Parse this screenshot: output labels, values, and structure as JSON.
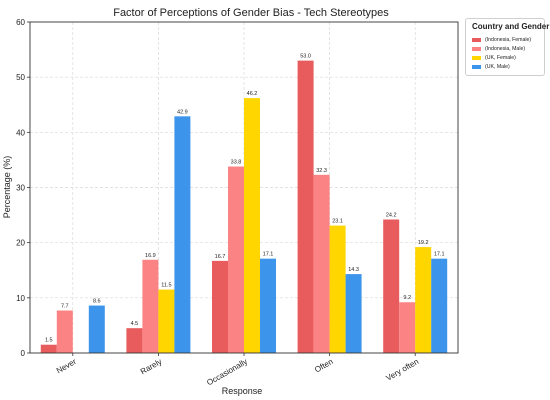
{
  "chart_data": {
    "type": "bar",
    "title": "Factor of Perceptions of Gender Bias - Tech Stereotypes",
    "xlabel": "Response",
    "ylabel": "Percentage (%)",
    "ylim": [
      0,
      60
    ],
    "yticks": [
      "0",
      "10",
      "20",
      "30",
      "40",
      "50",
      "60"
    ],
    "grid": true,
    "legend_title": "Country and Gender",
    "legend_position": "outside-top-right",
    "categories": [
      "Never",
      "Rarely",
      "Occasionally",
      "Often",
      "Very often"
    ],
    "series": [
      {
        "name": "(Indonesia, Female)",
        "color": "#e85c5e",
        "values": [
          1.5,
          4.5,
          16.7,
          53.0,
          24.2
        ],
        "labels": [
          "1.5",
          "4.5",
          "16.7",
          "53.0",
          "24.2"
        ]
      },
      {
        "name": "(Indonesia, Male)",
        "color": "#fb8383",
        "values": [
          7.7,
          16.9,
          33.8,
          32.3,
          9.2
        ],
        "labels": [
          "7.7",
          "16.9",
          "33.8",
          "32.3",
          "9.2"
        ]
      },
      {
        "name": "(UK, Female)",
        "color": "#ffd600",
        "values": [
          null,
          11.5,
          46.2,
          23.1,
          19.2
        ],
        "labels": [
          "",
          "11.5",
          "46.2",
          "23.1",
          "19.2"
        ]
      },
      {
        "name": "(UK, Male)",
        "color": "#3d95eb",
        "values": [
          8.6,
          42.9,
          17.1,
          14.3,
          17.1
        ],
        "labels": [
          "8.6",
          "42.9",
          "17.1",
          "14.3",
          "17.1"
        ]
      }
    ]
  }
}
